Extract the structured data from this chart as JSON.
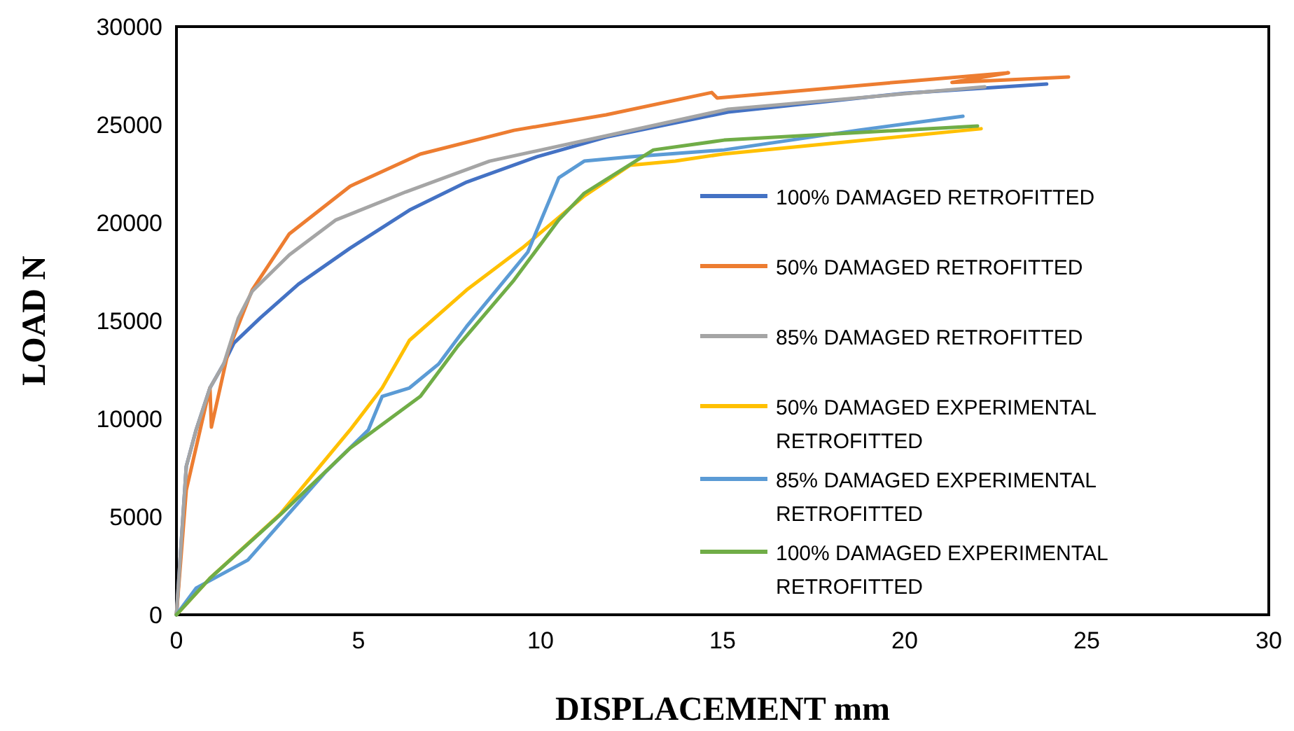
{
  "chart_data": {
    "type": "line",
    "xlabel": "DISPLACEMENT mm",
    "ylabel": "LOAD N",
    "xlim": [
      0,
      30
    ],
    "ylim": [
      0,
      30000
    ],
    "xticks": [
      0,
      5,
      10,
      15,
      20,
      25,
      30
    ],
    "yticks": [
      0,
      5000,
      10000,
      15000,
      20000,
      25000,
      30000
    ],
    "grid": false,
    "legend": "right",
    "marker": "none",
    "line_style": "solid",
    "series": [
      {
        "name": "100% DAMAGED RETROFITTED",
        "color": "#4472c4",
        "x": [
          0,
          0.27,
          0.54,
          0.92,
          1.3,
          1.58,
          2.3,
          3.35,
          4.77,
          6.4,
          7.97,
          9.9,
          11.8,
          15.15,
          20,
          23.9
        ],
        "values": [
          0,
          7570,
          9430,
          11570,
          12800,
          13860,
          15140,
          16860,
          18700,
          20640,
          22070,
          23360,
          24360,
          25640,
          26600,
          27070
        ]
      },
      {
        "name": "50% DAMAGED RETROFITTED",
        "color": "#ed7d31",
        "x": [
          0,
          0.27,
          0.8,
          0.92,
          0.96,
          1.43,
          2.08,
          3.1,
          4.77,
          6.7,
          9.27,
          11.8,
          14.7,
          14.85,
          20,
          22.85,
          21.3,
          24.5
        ],
        "values": [
          0,
          6360,
          10640,
          11570,
          9570,
          13500,
          16570,
          19430,
          21860,
          23500,
          24710,
          25500,
          26640,
          26360,
          27200,
          27640,
          27150,
          27430
        ]
      },
      {
        "name": "85% DAMAGED RETROFITTED",
        "color": "#a5a5a5",
        "x": [
          0,
          0.27,
          0.54,
          0.92,
          1.3,
          1.7,
          2.08,
          3.1,
          4.38,
          6.3,
          8.6,
          11.8,
          15.15,
          22.2
        ],
        "values": [
          0,
          7570,
          9430,
          11570,
          12800,
          15140,
          16500,
          18360,
          20140,
          21570,
          23140,
          24430,
          25790,
          26930
        ]
      },
      {
        "name": "50% DAMAGED EXPERIMENTAL RETROFITTED",
        "color": "#ffc000",
        "x": [
          0,
          0.92,
          2.85,
          4.77,
          5.65,
          6.4,
          7.97,
          9.5,
          11.2,
          12.46,
          13.7,
          15,
          22.1
        ],
        "values": [
          0,
          1860,
          5140,
          9430,
          11570,
          14000,
          16570,
          18710,
          21360,
          22930,
          23140,
          23500,
          24790
        ]
      },
      {
        "name": "85% DAMAGED EXPERIMENTAL RETROFITTED",
        "color": "#5b9bd5",
        "x": [
          0,
          0.54,
          1.96,
          4.1,
          5.27,
          5.65,
          6.4,
          7.2,
          7.97,
          9.65,
          10.5,
          11.2,
          12.46,
          15.04,
          18.7,
          21.6
        ],
        "values": [
          0,
          1360,
          2790,
          7290,
          9430,
          11140,
          11570,
          12790,
          14710,
          18500,
          22290,
          23140,
          23360,
          23710,
          24710,
          25430
        ]
      },
      {
        "name": "100% DAMAGED EXPERIMENTAL RETROFITTED",
        "color": "#70ad47",
        "x": [
          0,
          0.92,
          2.85,
          4.77,
          6.7,
          7.73,
          9.27,
          10.5,
          11.2,
          13.1,
          15.04,
          22
        ],
        "values": [
          0,
          1860,
          5100,
          8500,
          11140,
          13710,
          17070,
          20140,
          21500,
          23710,
          24210,
          24930
        ]
      }
    ]
  }
}
